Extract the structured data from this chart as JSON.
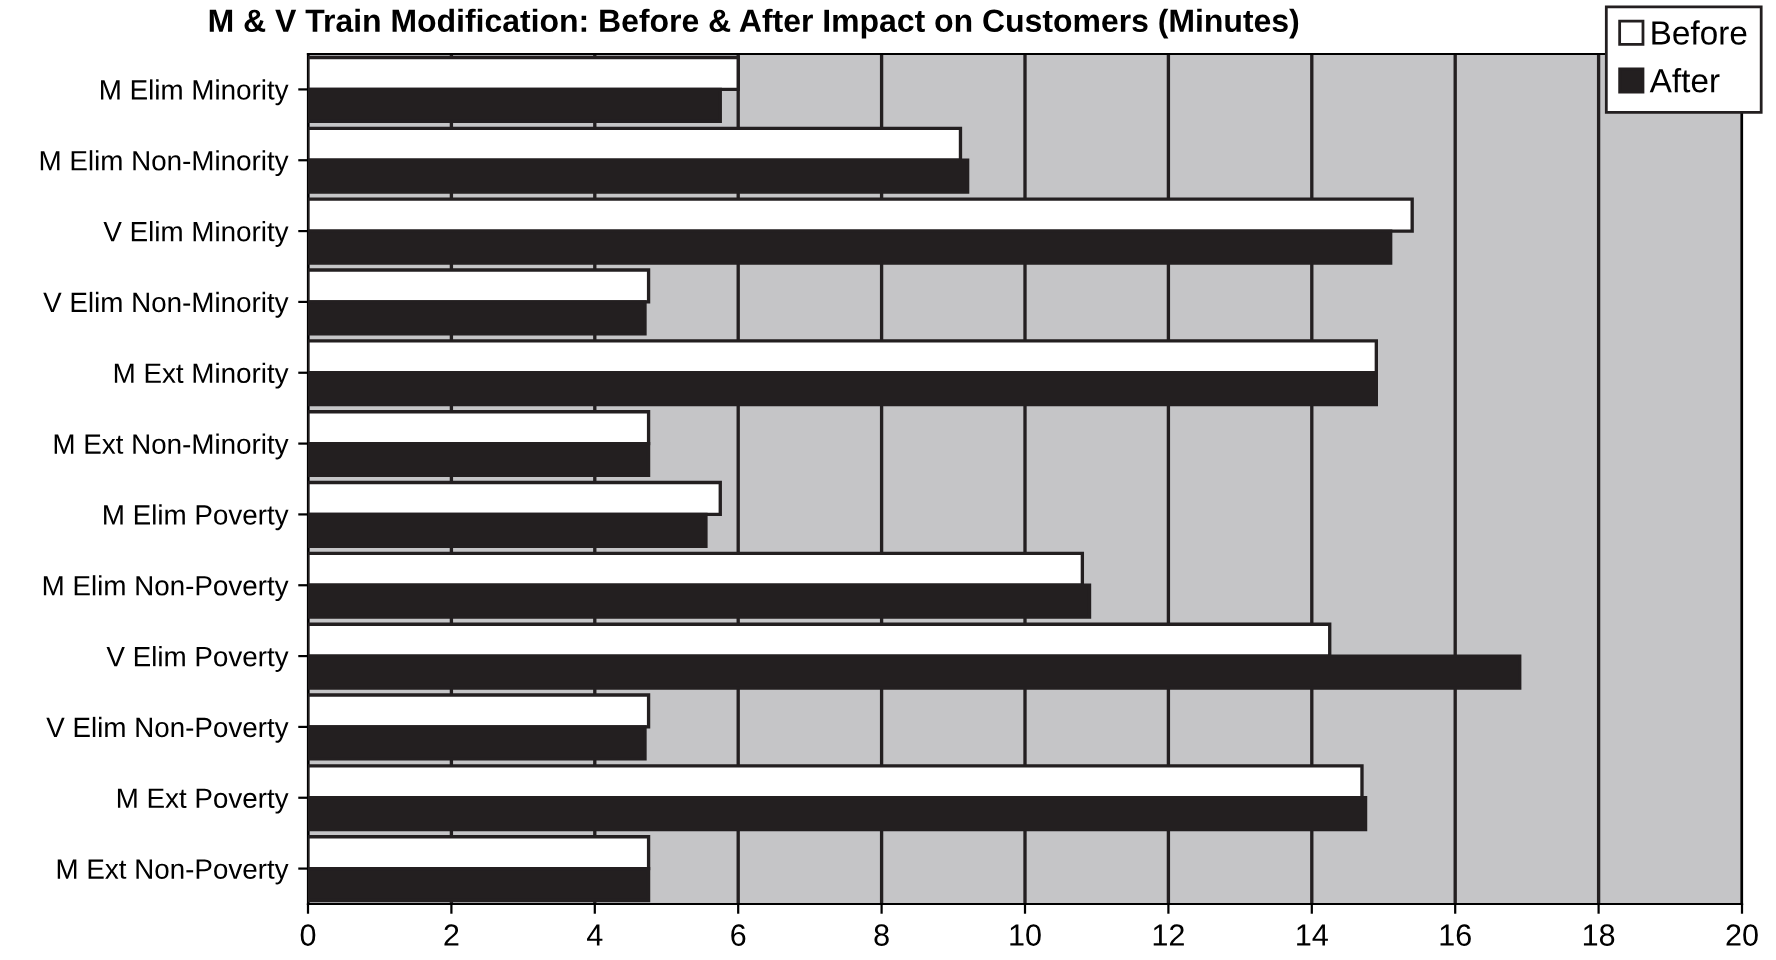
{
  "chart_data": {
    "type": "bar",
    "orientation": "horizontal",
    "title": "M & V Train Modification: Before & After Impact on Customers (Minutes)",
    "categories": [
      "M Elim Minority",
      "M Elim Non-Minority",
      "V Elim Minority",
      "V Elim Non-Minority",
      "M Ext Minority",
      "M Ext Non-Minority",
      "M Elim Poverty",
      "M Elim Non-Poverty",
      "V Elim Poverty",
      "V Elim Non-Poverty",
      "M Ext Poverty",
      "M Ext Non-Poverty"
    ],
    "series": [
      {
        "name": "Before",
        "color": "#ffffff",
        "values": [
          6.0,
          9.1,
          15.4,
          4.75,
          14.9,
          4.75,
          5.75,
          10.8,
          14.25,
          4.75,
          14.7,
          4.75
        ]
      },
      {
        "name": "After",
        "color": "#231f20",
        "values": [
          5.75,
          9.2,
          15.1,
          4.7,
          14.9,
          4.75,
          5.55,
          10.9,
          16.9,
          4.7,
          14.75,
          4.75
        ]
      }
    ],
    "xlim": [
      0,
      20
    ],
    "xticks": [
      0,
      2,
      4,
      6,
      8,
      10,
      12,
      14,
      16,
      18,
      20
    ],
    "grid": "x",
    "legend": "top right"
  }
}
